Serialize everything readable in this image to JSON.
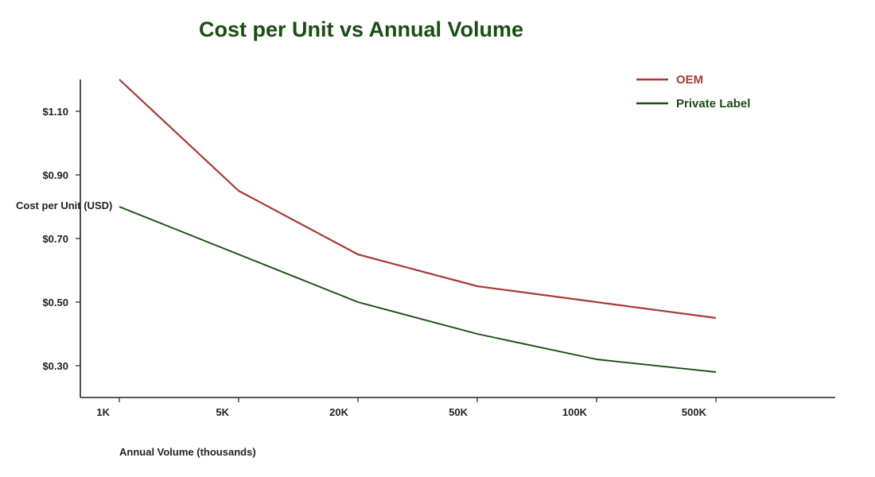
{
  "chart_data": {
    "type": "line",
    "title": "Cost per Unit vs Annual Volume",
    "xlabel": "Annual Volume (thousands)",
    "ylabel": "Cost per Unit (USD)",
    "categories": [
      "1K",
      "5K",
      "20K",
      "50K",
      "100K",
      "500K"
    ],
    "y_ticks": [
      "$0.30",
      "$0.50",
      "$0.70",
      "$0.90",
      "$1.10"
    ],
    "y_tick_values": [
      0.3,
      0.5,
      0.7,
      0.9,
      1.1
    ],
    "ylim": [
      0.2,
      1.2
    ],
    "grid": false,
    "legend_position": "top-right",
    "series": [
      {
        "name": "OEM",
        "color": "#a83a3a",
        "values": [
          1.2,
          0.85,
          0.65,
          0.55,
          0.5,
          0.45
        ]
      },
      {
        "name": "Private Label",
        "color": "#1a4d14",
        "values": [
          0.8,
          0.65,
          0.5,
          0.4,
          0.32,
          0.28
        ]
      }
    ]
  },
  "colors": {
    "title": "#1a4d14",
    "axis": "#222222"
  }
}
